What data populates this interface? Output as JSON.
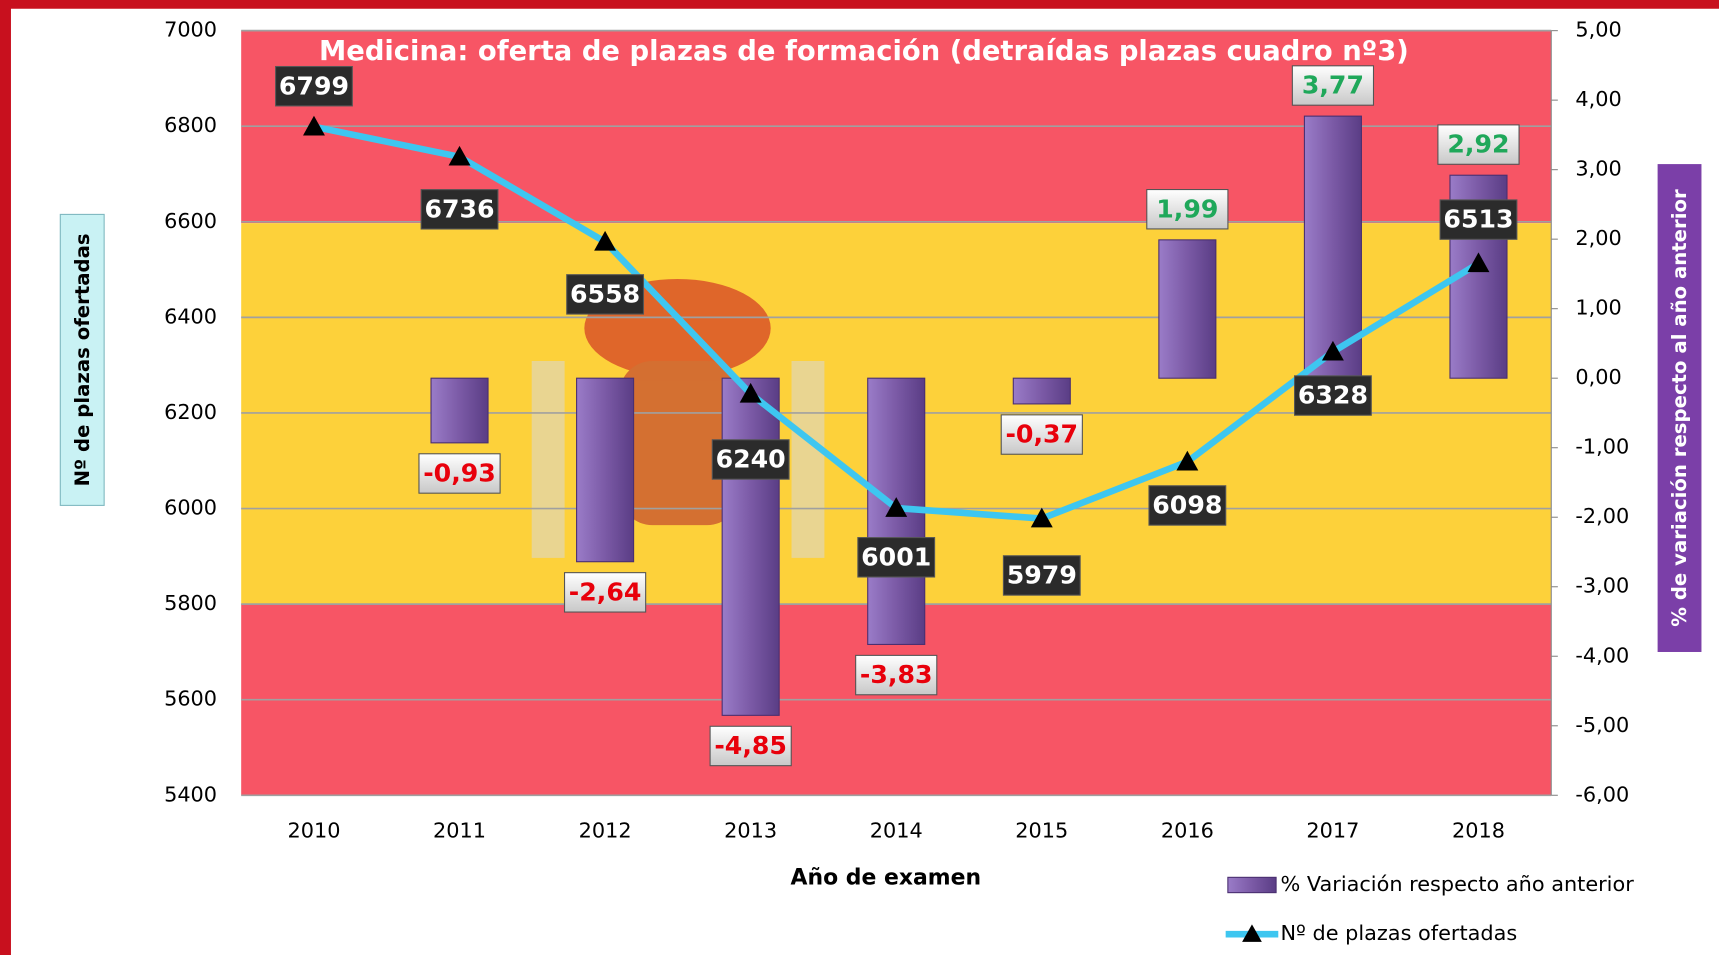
{
  "chart_data": {
    "type": "bar-line",
    "title": "Medicina: oferta de plazas de formación (detraídas plazas cuadro nº3)",
    "x_label": "Año de examen",
    "y_label": "Nº de plazas ofertadas",
    "y2_label": "% de variación respecto al año anterior",
    "categories": [
      "2010",
      "2011",
      "2012",
      "2013",
      "2014",
      "2015",
      "2016",
      "2017",
      "2018"
    ],
    "ylim": [
      5400,
      7000
    ],
    "yticks": [
      5400,
      5600,
      5800,
      6000,
      6200,
      6400,
      6600,
      6800,
      7000
    ],
    "y2lim": [
      -6,
      5
    ],
    "y2ticks": [
      {
        "value": -6,
        "label": "-6,00"
      },
      {
        "value": -5,
        "label": "-5,00"
      },
      {
        "value": -4,
        "label": "-4,00"
      },
      {
        "value": -3,
        "label": "-3,00"
      },
      {
        "value": -2,
        "label": "-2,00"
      },
      {
        "value": -1,
        "label": "-1,00"
      },
      {
        "value": 0,
        "label": "0,00"
      },
      {
        "value": 1,
        "label": "1,00"
      },
      {
        "value": 2,
        "label": "2,00"
      },
      {
        "value": 3,
        "label": "3,00"
      },
      {
        "value": 4,
        "label": "4,00"
      },
      {
        "value": 5,
        "label": "5,00"
      }
    ],
    "grid": true,
    "series": [
      {
        "name": "% Variación respecto año anterior",
        "type": "bar",
        "axis": "y2",
        "color": "#7b5aa6",
        "values": [
          null,
          -0.93,
          -2.64,
          -4.85,
          -3.83,
          -0.37,
          1.99,
          3.77,
          2.92
        ],
        "value_labels": [
          null,
          "-0,93",
          "-2,64",
          "-4,85",
          "-3,83",
          "-0,37",
          "1,99",
          "3,77",
          "2,92"
        ]
      },
      {
        "name": "Nº de plazas ofertadas",
        "type": "line",
        "axis": "y",
        "color": "#3ec6f0",
        "values": [
          6799,
          6736,
          6558,
          6240,
          6001,
          5979,
          6098,
          6328,
          6513
        ]
      }
    ]
  }
}
